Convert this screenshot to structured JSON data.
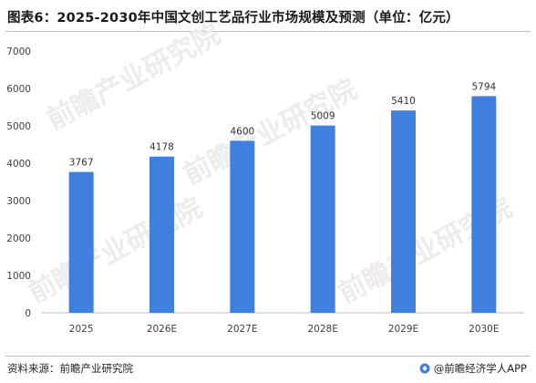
{
  "title": "图表6：2025-2030年中国文创工艺品行业市场规模及预测（单位：亿元）",
  "footer": {
    "source": "资料来源：前瞻产业研究院",
    "credit": "@前瞻经济学人APP"
  },
  "watermark": "前瞻产业研究院",
  "colors": {
    "bar": "#3f7fdd",
    "axis": "#bfbfbf",
    "text": "#404040"
  },
  "chart_data": {
    "type": "bar",
    "categories": [
      "2025",
      "2026E",
      "2027E",
      "2028E",
      "2029E",
      "2030E"
    ],
    "values": [
      3767,
      4178,
      4600,
      5009,
      5410,
      5794
    ],
    "title": "图表6：2025-2030年中国文创工艺品行业市场规模及预测（单位：亿元）",
    "xlabel": "",
    "ylabel": "",
    "ylim": [
      0,
      7000
    ],
    "yticks": [
      0,
      1000,
      2000,
      3000,
      4000,
      5000,
      6000,
      7000
    ],
    "grid": false,
    "legend": "none"
  }
}
